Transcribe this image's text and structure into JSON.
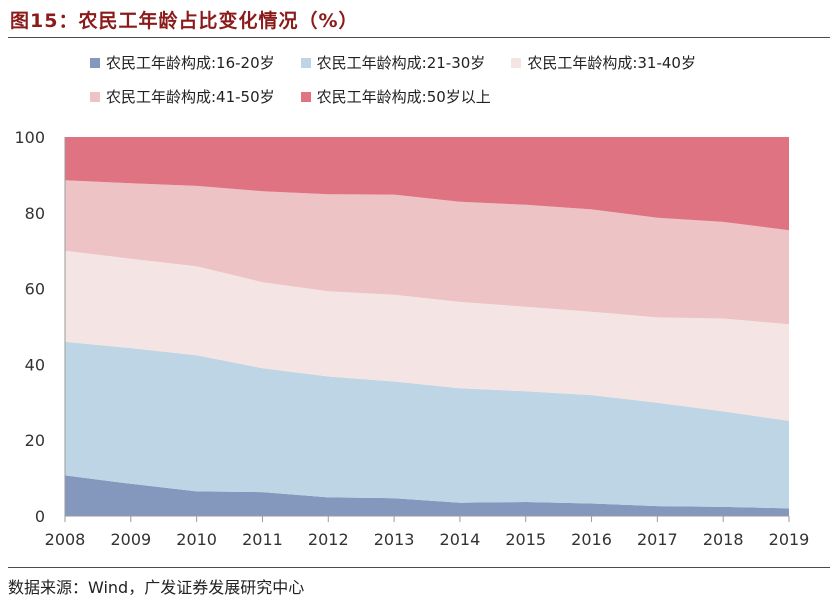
{
  "title": "图15：农民工年龄占比变化情况（%）",
  "source": "数据来源：Wind，广发证券发展研究中心",
  "chart_data": {
    "type": "area",
    "stacked": true,
    "x": [
      "2008",
      "2009",
      "2010",
      "2011",
      "2012",
      "2013",
      "2014",
      "2015",
      "2016",
      "2017",
      "2018",
      "2019"
    ],
    "ylim": [
      0,
      100
    ],
    "yticks": [
      "0",
      "20",
      "40",
      "60",
      "80",
      "100"
    ],
    "grid": false,
    "legend": "top",
    "series": [
      {
        "name": "农民工年龄构成:16-20岁",
        "color": "#8497bd",
        "values": [
          10.7,
          8.5,
          6.5,
          6.3,
          4.9,
          4.7,
          3.5,
          3.7,
          3.3,
          2.6,
          2.4,
          2.0
        ]
      },
      {
        "name": "农民工年龄构成:21-30岁",
        "color": "#bdd5e4",
        "values": [
          35.3,
          35.8,
          35.9,
          32.7,
          31.9,
          30.8,
          30.2,
          29.2,
          28.6,
          27.3,
          25.2,
          23.1
        ]
      },
      {
        "name": "农民工年龄构成:31-40岁",
        "color": "#f5e4e4",
        "values": [
          24.0,
          23.6,
          23.5,
          22.7,
          22.5,
          22.9,
          22.8,
          22.3,
          22.0,
          22.5,
          24.5,
          25.5
        ]
      },
      {
        "name": "农民工年龄构成:41-50岁",
        "color": "#edc3c5",
        "values": [
          18.6,
          19.9,
          21.2,
          24.0,
          25.6,
          26.4,
          26.4,
          26.9,
          27.0,
          26.3,
          25.5,
          24.8
        ]
      },
      {
        "name": "农民工年龄构成:50岁以上",
        "color": "#df7381",
        "values": [
          11.4,
          12.2,
          12.9,
          14.3,
          15.1,
          15.2,
          17.1,
          17.9,
          19.1,
          21.3,
          22.4,
          24.6
        ]
      }
    ]
  }
}
